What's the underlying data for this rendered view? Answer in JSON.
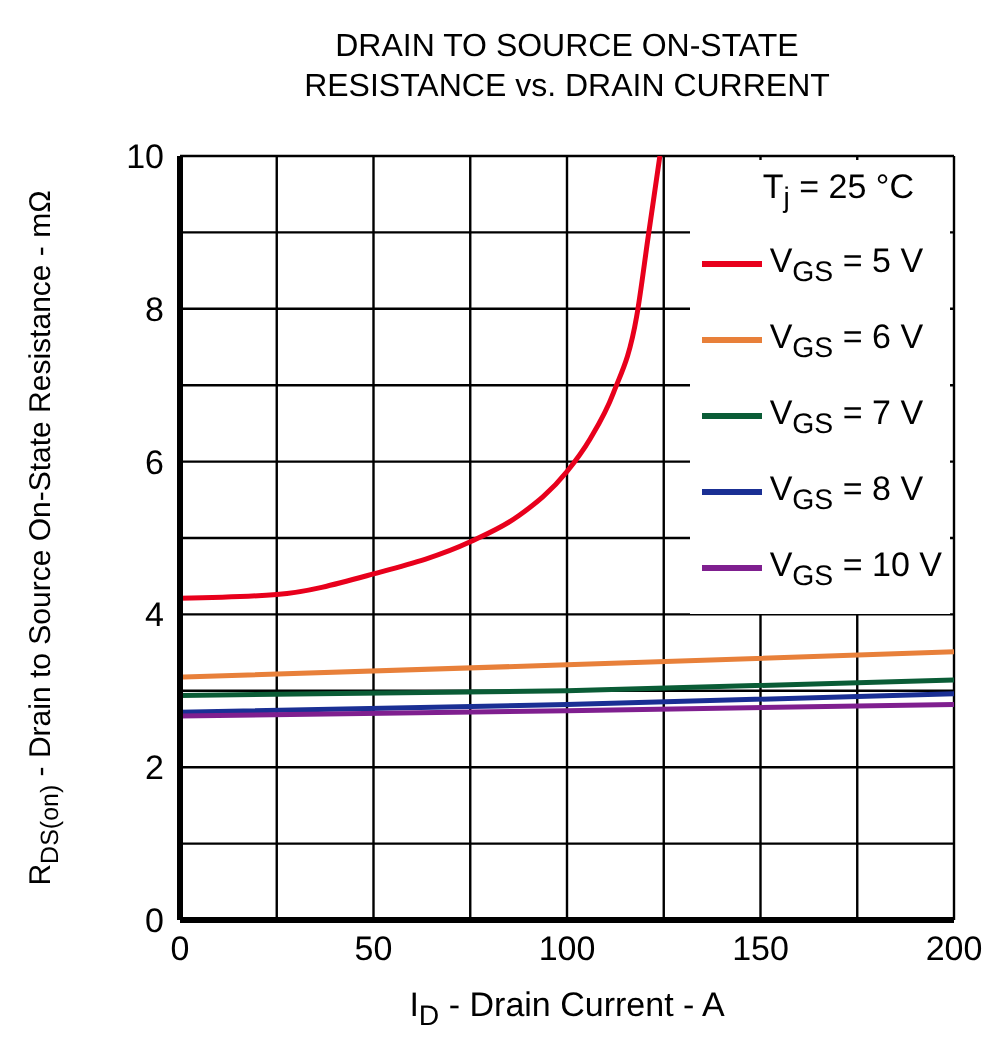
{
  "chart_data": {
    "type": "line",
    "title": "DRAIN TO SOURCE ON-STATE\nRESISTANCE vs. DRAIN CURRENT",
    "xlabel": "I$_{D}$ - Drain Current - A",
    "ylabel": "R$_{DS(on)}$ - Drain to Source On-State Resistance - mΩ",
    "legend_title": "T$_{j}$ = 25 °C",
    "xlim": [
      0,
      200
    ],
    "xticks": [
      0,
      {
        "value": 25,
        "label": null
      },
      50,
      {
        "value": 75,
        "label": null
      },
      100,
      {
        "value": 125,
        "label": null
      },
      150,
      {
        "value": 175,
        "label": null
      },
      200
    ],
    "ylim": [
      0,
      10
    ],
    "yticks": [
      0,
      {
        "value": 1,
        "label": null
      },
      2,
      {
        "value": 3,
        "label": null
      },
      4,
      {
        "value": 5,
        "label": null
      },
      6,
      {
        "value": 7,
        "label": null
      },
      8,
      {
        "value": 9,
        "label": null
      },
      10
    ],
    "grid": true,
    "legend": "top right",
    "line_style": "solid",
    "marker": "none",
    "series": [
      {
        "name": "V$_{GS}$ = 5 V",
        "color": "#e8001c",
        "x": [
          0,
          25,
          50,
          75,
          87.5,
          100,
          106,
          112,
          118,
          121,
          124
        ],
        "values": [
          4.21,
          4.26,
          4.53,
          4.95,
          5.29,
          5.87,
          6.3,
          6.9,
          7.9,
          8.95,
          10
        ]
      },
      {
        "name": "V$_{GS}$ = 6 V",
        "color": "#e8803a",
        "x": [
          0,
          100,
          200
        ],
        "values": [
          3.18,
          3.34,
          3.51
        ]
      },
      {
        "name": "V$_{GS}$ = 7 V",
        "color": "#0a5c36",
        "x": [
          0,
          100,
          200
        ],
        "values": [
          2.94,
          3.0,
          3.14
        ]
      },
      {
        "name": "V$_{GS}$ = 8 V",
        "color": "#1a2f94",
        "x": [
          0,
          100,
          200
        ],
        "values": [
          2.72,
          2.82,
          2.96
        ]
      },
      {
        "name": "V$_{GS}$ = 10 V",
        "color": "#7f1f8f",
        "x": [
          0,
          100,
          200
        ],
        "values": [
          2.67,
          2.74,
          2.82
        ]
      }
    ]
  }
}
